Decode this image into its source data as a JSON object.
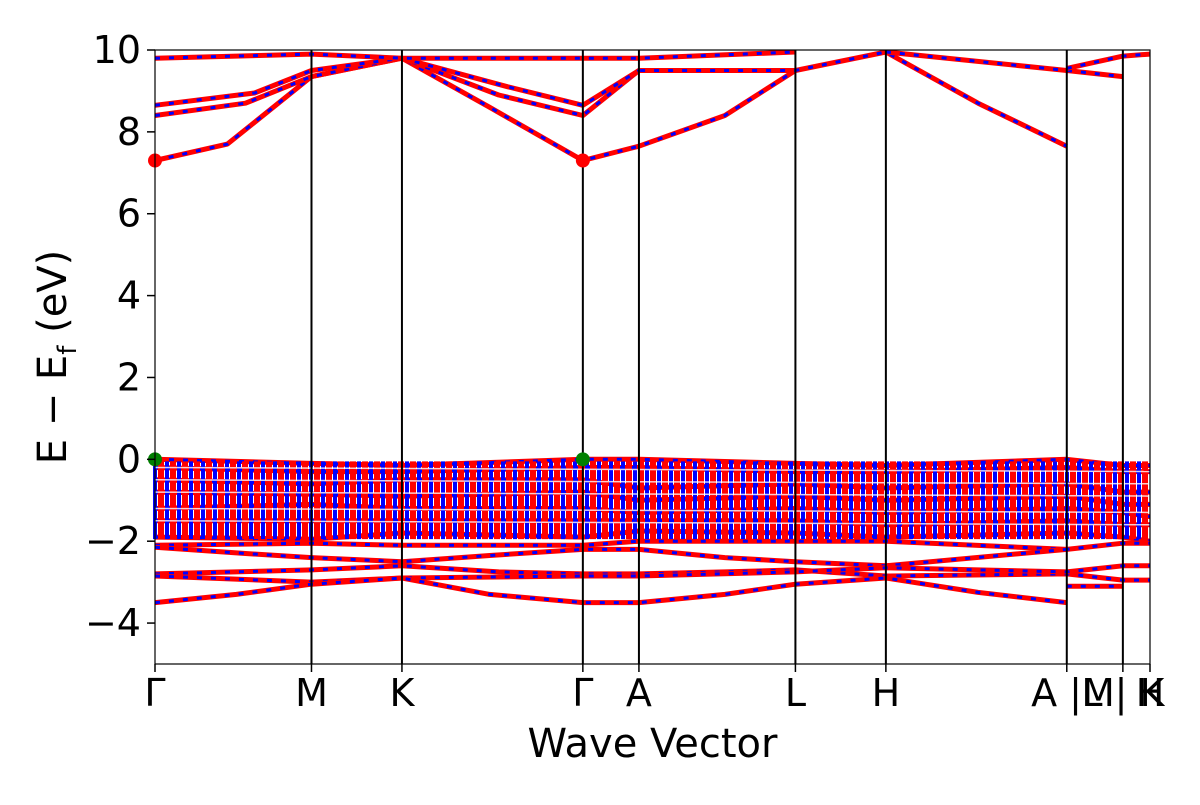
{
  "chart_data": {
    "type": "line",
    "title": "",
    "xlabel": "Wave Vector",
    "ylabel_main": "E − E",
    "ylabel_sub": "f",
    "ylabel_unit": " (eV)",
    "ylim": [
      -5,
      10
    ],
    "yticks": [
      -4,
      -2,
      0,
      2,
      4,
      6,
      8,
      10
    ],
    "x_range": [
      0,
      11
    ],
    "kpoints": [
      {
        "label": "Γ",
        "x": 0.0
      },
      {
        "label": "M",
        "x": 1.73
      },
      {
        "label": "K",
        "x": 2.73
      },
      {
        "label": "Γ",
        "x": 4.73
      },
      {
        "label": "A",
        "x": 5.35
      },
      {
        "label": "L",
        "x": 7.08
      },
      {
        "label": "H",
        "x": 8.08
      },
      {
        "label": "A |M",
        "x": 10.08
      },
      {
        "label": "L | K",
        "x": 10.7
      },
      {
        "label": "H",
        "x": 11.0
      }
    ],
    "colors": {
      "spin_up": "#ff0000",
      "spin_down": "#0000ff",
      "cbm_marker": "#ff0000",
      "vbm_marker": "#008000"
    },
    "series": [
      {
        "points": [
          [
            0,
            7.3
          ],
          [
            0.8,
            7.7
          ],
          [
            1.73,
            9.35
          ],
          [
            2.73,
            9.8
          ],
          [
            3.7,
            8.6
          ],
          [
            4.73,
            7.3
          ],
          [
            5.35,
            7.65
          ],
          [
            6.3,
            8.4
          ],
          [
            7.08,
            9.5
          ],
          [
            8.08,
            9.95
          ],
          [
            9.1,
            8.7
          ],
          [
            10.08,
            7.65
          ]
        ]
      },
      {
        "points": [
          [
            0,
            8.4
          ],
          [
            1.0,
            8.7
          ],
          [
            1.73,
            9.35
          ],
          [
            2.73,
            9.8
          ],
          [
            3.8,
            8.9
          ],
          [
            4.73,
            8.4
          ],
          [
            5.35,
            9.5
          ],
          [
            7.08,
            9.5
          ]
        ]
      },
      {
        "points": [
          [
            0,
            8.65
          ],
          [
            1.1,
            8.95
          ],
          [
            1.73,
            9.5
          ],
          [
            2.73,
            9.8
          ],
          [
            3.9,
            9.1
          ],
          [
            4.73,
            8.65
          ],
          [
            5.35,
            9.5
          ]
        ]
      },
      {
        "points": [
          [
            0,
            9.8
          ],
          [
            1.73,
            9.9
          ],
          [
            2.73,
            9.8
          ],
          [
            4.73,
            9.8
          ],
          [
            5.35,
            9.8
          ],
          [
            7.08,
            9.95
          ]
        ]
      },
      {
        "points": [
          [
            8.08,
            9.95
          ],
          [
            10.08,
            9.5
          ],
          [
            10.7,
            9.35
          ]
        ]
      },
      {
        "points": [
          [
            10.08,
            9.55
          ],
          [
            10.7,
            9.85
          ],
          [
            11.0,
            9.9
          ]
        ]
      },
      {
        "points": [
          [
            0,
            0.0
          ],
          [
            1.73,
            -0.1
          ],
          [
            2.73,
            -0.15
          ],
          [
            4.73,
            0.0
          ],
          [
            5.35,
            0.0
          ],
          [
            7.08,
            -0.1
          ],
          [
            8.08,
            -0.15
          ],
          [
            10.08,
            0.0
          ],
          [
            10.7,
            -0.15
          ],
          [
            11.0,
            -0.15
          ]
        ]
      },
      {
        "points": [
          [
            0,
            -0.2
          ],
          [
            1.73,
            -0.3
          ],
          [
            2.73,
            -0.3
          ],
          [
            4.73,
            -0.2
          ],
          [
            5.35,
            -0.2
          ],
          [
            7.08,
            -0.3
          ],
          [
            8.08,
            -0.3
          ],
          [
            10.08,
            -0.2
          ],
          [
            10.7,
            -0.3
          ],
          [
            11.0,
            -0.3
          ]
        ]
      },
      {
        "points": [
          [
            0,
            -0.5
          ],
          [
            1.73,
            -0.6
          ],
          [
            2.73,
            -0.5
          ],
          [
            4.73,
            -0.5
          ],
          [
            5.35,
            -0.7
          ],
          [
            7.08,
            -0.6
          ],
          [
            8.08,
            -0.7
          ],
          [
            10.08,
            -0.6
          ],
          [
            10.7,
            -0.8
          ],
          [
            11.0,
            -0.8
          ]
        ]
      },
      {
        "points": [
          [
            0,
            -0.8
          ],
          [
            1.73,
            -0.85
          ],
          [
            2.73,
            -0.9
          ],
          [
            4.73,
            -0.8
          ],
          [
            5.35,
            -1.0
          ],
          [
            7.08,
            -0.9
          ],
          [
            8.08,
            -1.0
          ],
          [
            10.08,
            -0.9
          ],
          [
            10.7,
            -1.1
          ],
          [
            11.0,
            -1.1
          ]
        ]
      },
      {
        "points": [
          [
            0,
            -1.2
          ],
          [
            1.73,
            -1.1
          ],
          [
            2.73,
            -1.2
          ],
          [
            4.73,
            -1.2
          ],
          [
            5.35,
            -1.3
          ],
          [
            7.08,
            -1.2
          ],
          [
            8.08,
            -1.3
          ],
          [
            10.08,
            -1.2
          ],
          [
            10.7,
            -1.3
          ],
          [
            11.0,
            -1.4
          ]
        ]
      },
      {
        "points": [
          [
            0,
            -1.5
          ],
          [
            1.73,
            -1.5
          ],
          [
            2.73,
            -1.5
          ],
          [
            4.73,
            -1.5
          ],
          [
            5.35,
            -1.5
          ],
          [
            7.08,
            -1.5
          ],
          [
            8.08,
            -1.6
          ],
          [
            10.08,
            -1.5
          ],
          [
            10.7,
            -1.6
          ],
          [
            11.0,
            -1.6
          ]
        ]
      },
      {
        "points": [
          [
            0,
            -1.9
          ],
          [
            1.73,
            -1.95
          ],
          [
            2.73,
            -1.8
          ],
          [
            4.73,
            -1.9
          ],
          [
            5.35,
            -1.75
          ],
          [
            7.08,
            -1.8
          ],
          [
            8.08,
            -1.9
          ],
          [
            10.08,
            -1.8
          ],
          [
            10.7,
            -1.9
          ],
          [
            11.0,
            -2.0
          ]
        ]
      },
      {
        "points": [
          [
            0,
            -2.1
          ],
          [
            1.73,
            -2.05
          ],
          [
            2.73,
            -2.1
          ],
          [
            4.73,
            -2.1
          ],
          [
            5.35,
            -2.0
          ],
          [
            7.08,
            -2.0
          ],
          [
            8.08,
            -2.0
          ],
          [
            10.08,
            -2.2
          ],
          [
            10.7,
            -2.05
          ],
          [
            11.0,
            -2.05
          ]
        ]
      },
      {
        "points": [
          [
            0,
            -2.15
          ],
          [
            1.0,
            -2.3
          ],
          [
            1.73,
            -2.4
          ],
          [
            2.73,
            -2.5
          ],
          [
            3.7,
            -2.35
          ],
          [
            4.73,
            -2.2
          ],
          [
            5.35,
            -2.2
          ],
          [
            6.3,
            -2.4
          ],
          [
            7.08,
            -2.5
          ],
          [
            8.08,
            -2.6
          ],
          [
            10.08,
            -2.2
          ]
        ]
      },
      {
        "points": [
          [
            0,
            -2.8
          ],
          [
            1.73,
            -2.7
          ],
          [
            2.73,
            -2.6
          ],
          [
            3.8,
            -2.75
          ],
          [
            4.73,
            -2.8
          ],
          [
            5.35,
            -2.8
          ],
          [
            6.3,
            -2.75
          ],
          [
            7.08,
            -2.7
          ],
          [
            8.08,
            -2.85
          ],
          [
            10.08,
            -2.8
          ],
          [
            10.7,
            -2.95
          ],
          [
            11.0,
            -2.95
          ]
        ]
      },
      {
        "points": [
          [
            0,
            -2.85
          ],
          [
            1.73,
            -3.0
          ],
          [
            2.73,
            -2.9
          ],
          [
            4.73,
            -2.85
          ],
          [
            5.35,
            -2.85
          ],
          [
            7.08,
            -2.75
          ],
          [
            8.08,
            -2.65
          ],
          [
            10.08,
            -2.75
          ],
          [
            10.7,
            -2.6
          ],
          [
            11.0,
            -2.6
          ]
        ]
      },
      {
        "points": [
          [
            0,
            -3.5
          ],
          [
            0.9,
            -3.3
          ],
          [
            1.73,
            -3.05
          ],
          [
            2.73,
            -2.9
          ],
          [
            3.7,
            -3.3
          ],
          [
            4.73,
            -3.5
          ],
          [
            5.35,
            -3.5
          ],
          [
            6.3,
            -3.3
          ],
          [
            7.08,
            -3.05
          ],
          [
            8.08,
            -2.9
          ],
          [
            9.1,
            -3.25
          ],
          [
            10.08,
            -3.5
          ]
        ]
      },
      {
        "points": [
          [
            10.08,
            -3.1
          ],
          [
            10.7,
            -3.1
          ]
        ]
      }
    ],
    "markers": [
      {
        "x": 0.0,
        "y": 7.3,
        "kind": "cbm"
      },
      {
        "x": 4.73,
        "y": 7.3,
        "kind": "cbm"
      },
      {
        "x": 0.0,
        "y": 0.0,
        "kind": "vbm"
      },
      {
        "x": 4.73,
        "y": 0.0,
        "kind": "vbm"
      }
    ]
  }
}
